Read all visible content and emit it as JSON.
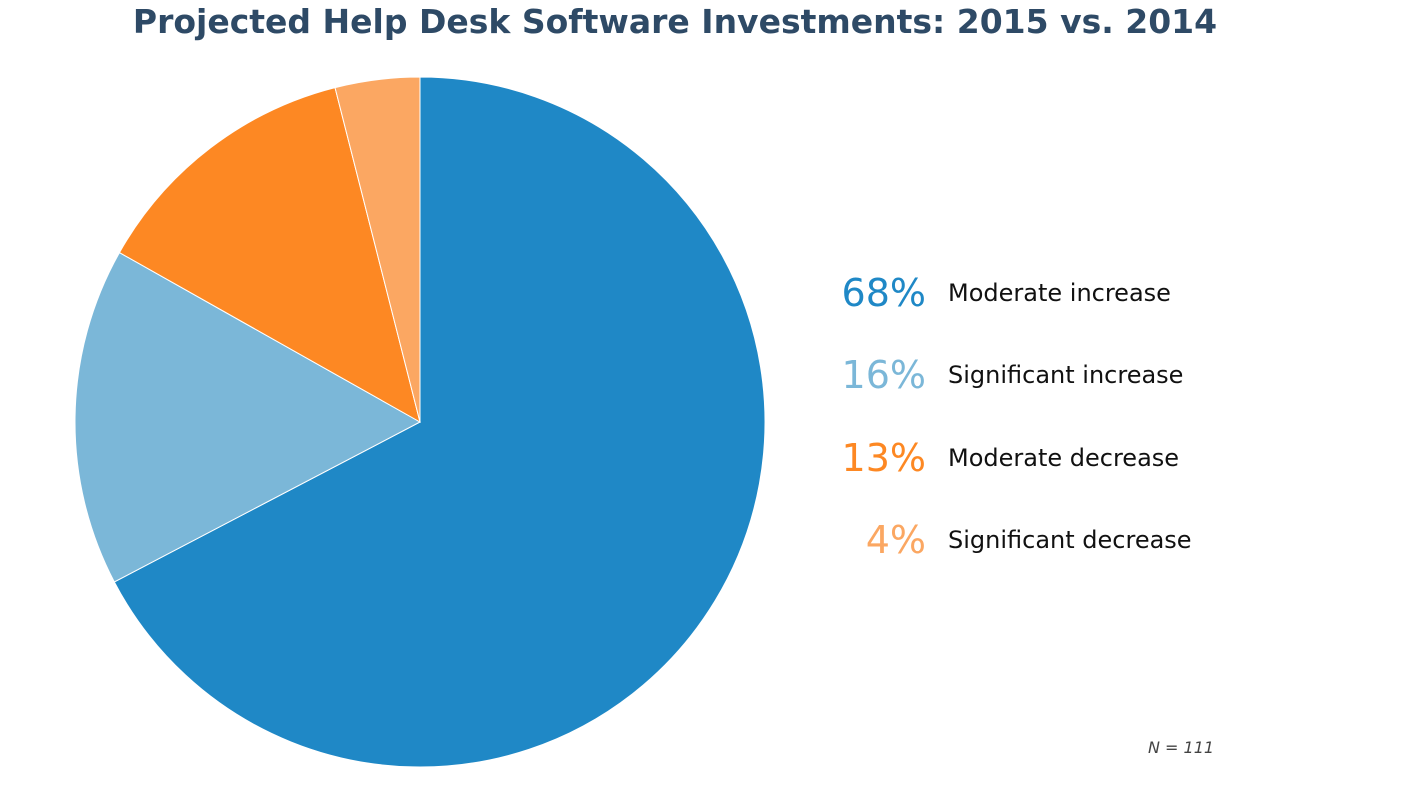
{
  "chart_data": {
    "type": "pie",
    "title": "Projected Help Desk Software Investments: 2015 vs. 2014",
    "start": "top",
    "direction": "clockwise",
    "slices": [
      {
        "label": "Moderate increase",
        "value": 68,
        "display": "68%",
        "color": "#1f88c6"
      },
      {
        "label": "Significant increase",
        "value": 16,
        "display": "16%",
        "color": "#7bb7d8"
      },
      {
        "label": "Moderate decrease",
        "value": 13,
        "display": "13%",
        "color": "#fd8823"
      },
      {
        "label": "Significant decrease",
        "value": 4,
        "display": "4%",
        "color": "#fba762"
      }
    ],
    "legend_position": "right",
    "note": "N = 111"
  }
}
